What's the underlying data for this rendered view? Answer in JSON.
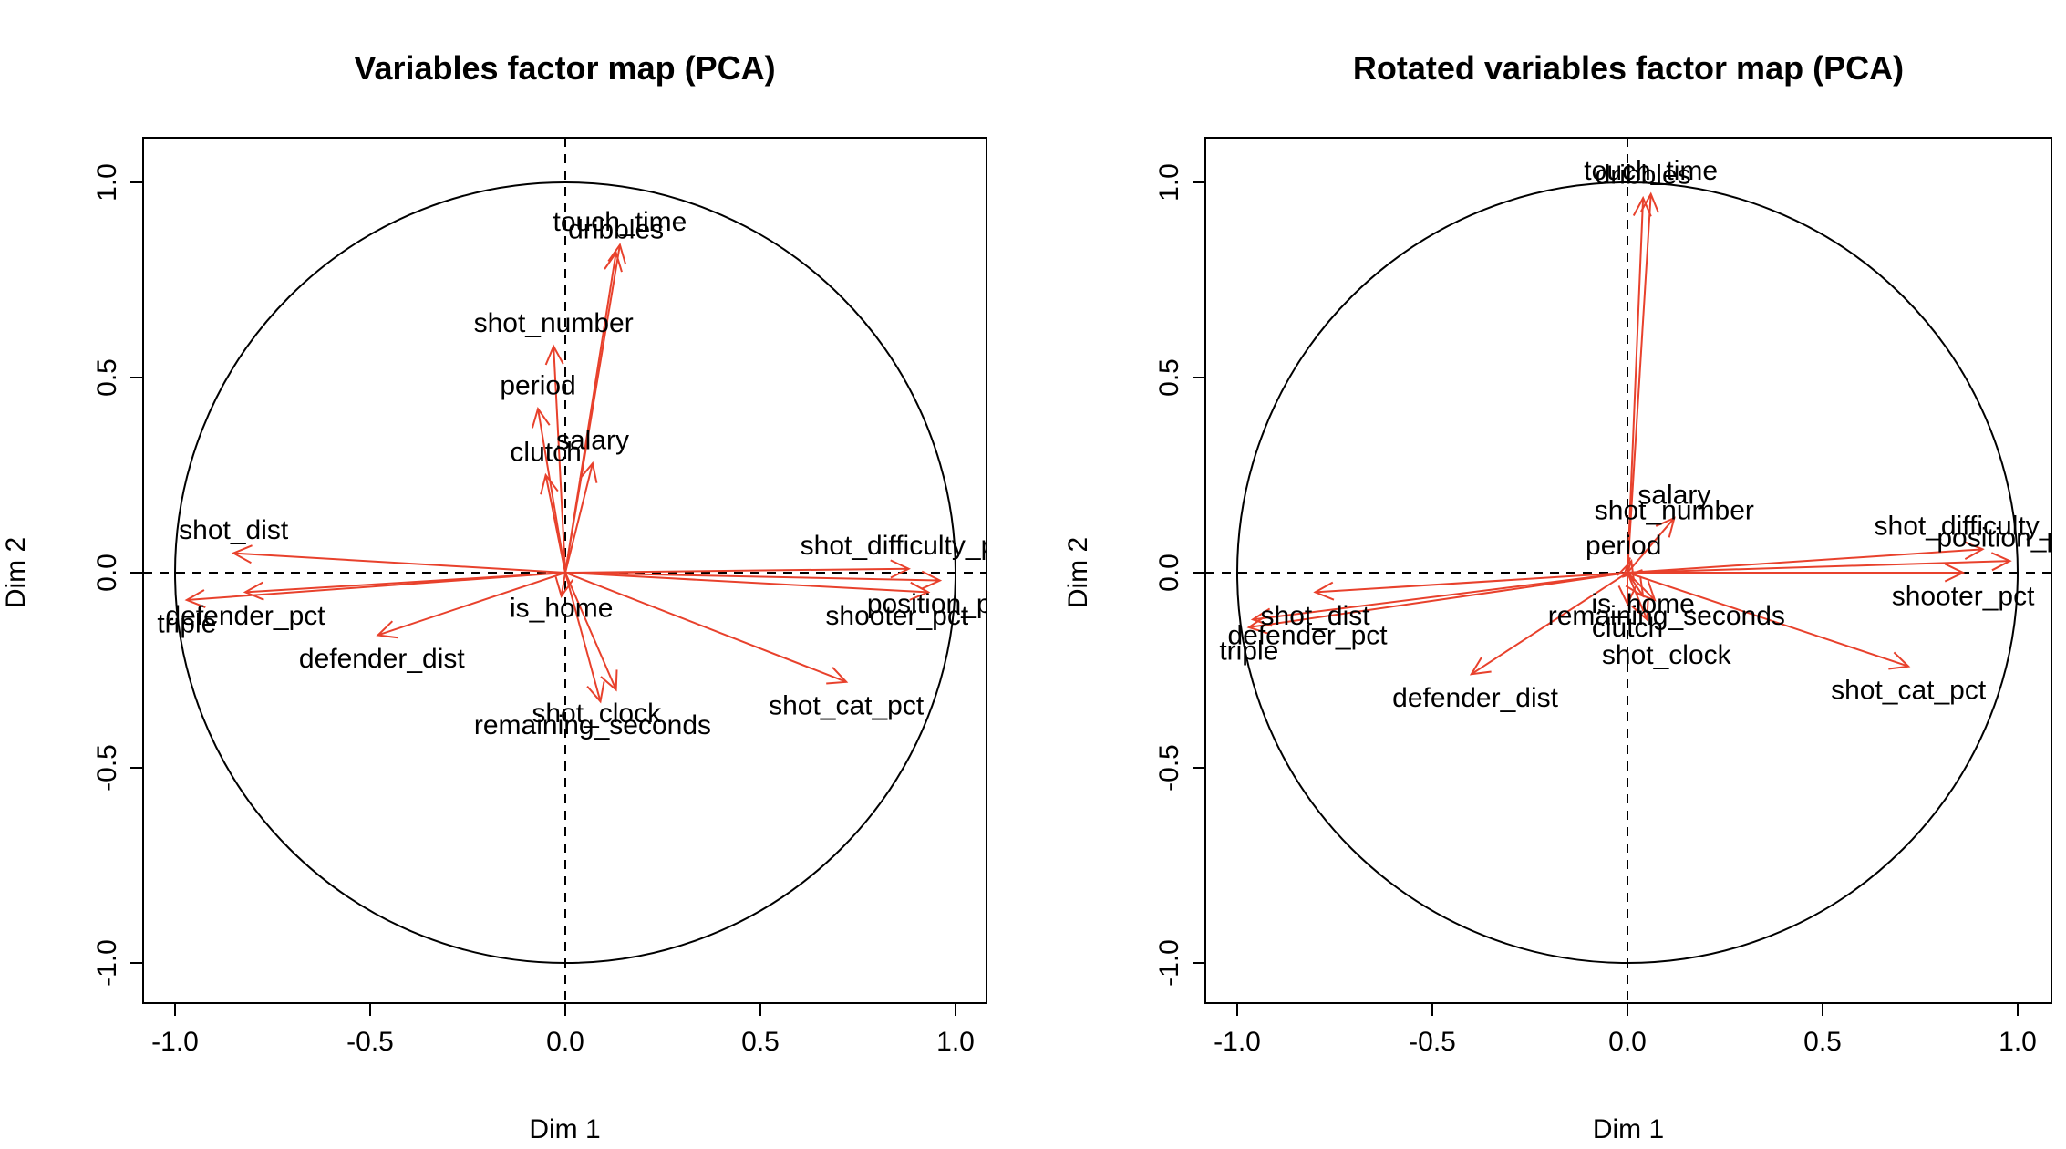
{
  "colors": {
    "arrow": "#e8412c",
    "axis": "#000000"
  },
  "chart_data": [
    {
      "type": "scatter",
      "subtype": "pca-variable-correlation-circle",
      "title": "Variables factor map (PCA)",
      "xlabel": "Dim 1",
      "ylabel": "Dim 2",
      "xlim": [
        -1.0,
        1.0
      ],
      "ylim": [
        -1.0,
        1.0
      ],
      "xticks": [
        "-1.0",
        "-0.5",
        "0.0",
        "0.5",
        "1.0"
      ],
      "yticks": [
        "-1.0",
        "-0.5",
        "0.0",
        "0.5",
        "1.0"
      ],
      "unit_circle": true,
      "variables": [
        {
          "name": "touch_time",
          "x": 0.14,
          "y": 0.84
        },
        {
          "name": "dribbles",
          "x": 0.13,
          "y": 0.82
        },
        {
          "name": "shot_number",
          "x": -0.03,
          "y": 0.58
        },
        {
          "name": "period",
          "x": -0.07,
          "y": 0.42
        },
        {
          "name": "salary",
          "x": 0.07,
          "y": 0.28
        },
        {
          "name": "clutch",
          "x": -0.05,
          "y": 0.25
        },
        {
          "name": "shot_dist",
          "x": -0.85,
          "y": 0.05
        },
        {
          "name": "shot_difficulty_pct",
          "x": 0.88,
          "y": 0.01
        },
        {
          "name": "position_pct",
          "x": 0.96,
          "y": -0.02
        },
        {
          "name": "shooter_pct",
          "x": 0.93,
          "y": -0.05
        },
        {
          "name": "defender_pct",
          "x": -0.82,
          "y": -0.05
        },
        {
          "name": "triple",
          "x": -0.97,
          "y": -0.07
        },
        {
          "name": "defender_dist",
          "x": -0.48,
          "y": -0.16
        },
        {
          "name": "is_home",
          "x": -0.01,
          "y": -0.06
        },
        {
          "name": "shot_clock",
          "x": 0.13,
          "y": -0.3
        },
        {
          "name": "remaining_seconds",
          "x": 0.09,
          "y": -0.33
        },
        {
          "name": "shot_cat_pct",
          "x": 0.72,
          "y": -0.28
        }
      ],
      "labels": [
        {
          "text": "touch_time",
          "x": 0.14,
          "y": 0.9
        },
        {
          "text": "dribbles",
          "x": 0.13,
          "y": 0.88
        },
        {
          "text": "shot_number",
          "x": -0.03,
          "y": 0.64
        },
        {
          "text": "period",
          "x": -0.07,
          "y": 0.48
        },
        {
          "text": "salary",
          "x": 0.07,
          "y": 0.34
        },
        {
          "text": "clutch",
          "x": -0.05,
          "y": 0.31
        },
        {
          "text": "shot_dist",
          "x": -0.85,
          "y": 0.11
        },
        {
          "text": "shot_difficulty_pct",
          "x": 0.88,
          "y": 0.07
        },
        {
          "text": "position_pct",
          "x": 0.96,
          "y": -0.08
        },
        {
          "text": "shooter_pct",
          "x": 0.85,
          "y": -0.11
        },
        {
          "text": "defender_pct",
          "x": -0.82,
          "y": -0.11
        },
        {
          "text": "triple",
          "x": -0.97,
          "y": -0.13
        },
        {
          "text": "defender_dist",
          "x": -0.47,
          "y": -0.22
        },
        {
          "text": "is_home",
          "x": -0.01,
          "y": -0.09
        },
        {
          "text": "shot_clock",
          "x": 0.08,
          "y": -0.36
        },
        {
          "text": "remaining_seconds",
          "x": 0.07,
          "y": -0.39
        },
        {
          "text": "shot_cat_pct",
          "x": 0.72,
          "y": -0.34
        }
      ]
    },
    {
      "type": "scatter",
      "subtype": "pca-variable-correlation-circle",
      "title": "Rotated variables factor map (PCA)",
      "xlabel": "Dim 1",
      "ylabel": "Dim 2",
      "xlim": [
        -1.0,
        1.0
      ],
      "ylim": [
        -1.0,
        1.0
      ],
      "xticks": [
        "-1.0",
        "-0.5",
        "0.0",
        "0.5",
        "1.0"
      ],
      "yticks": [
        "-1.0",
        "-0.5",
        "0.0",
        "0.5",
        "1.0"
      ],
      "unit_circle": true,
      "variables": [
        {
          "name": "touch_time",
          "x": 0.06,
          "y": 0.97
        },
        {
          "name": "dribbles",
          "x": 0.04,
          "y": 0.96
        },
        {
          "name": "salary",
          "x": 0.12,
          "y": 0.14
        },
        {
          "name": "shot_number",
          "x": 0.01,
          "y": 0.03
        },
        {
          "name": "period",
          "x": -0.01,
          "y": -0.01
        },
        {
          "name": "shot_difficulty_pct",
          "x": 0.91,
          "y": 0.06
        },
        {
          "name": "position_pct",
          "x": 0.98,
          "y": 0.03
        },
        {
          "name": "shooter_pct",
          "x": 0.86,
          "y": 0.0
        },
        {
          "name": "shot_dist",
          "x": -0.8,
          "y": -0.05
        },
        {
          "name": "defender_pct",
          "x": -0.96,
          "y": -0.12
        },
        {
          "name": "triple",
          "x": -0.97,
          "y": -0.14
        },
        {
          "name": "defender_dist",
          "x": -0.4,
          "y": -0.26
        },
        {
          "name": "is_home",
          "x": 0.04,
          "y": -0.06
        },
        {
          "name": "remaining_seconds",
          "x": 0.07,
          "y": -0.07
        },
        {
          "name": "clutch",
          "x": 0.0,
          "y": -0.08
        },
        {
          "name": "shot_clock",
          "x": 0.05,
          "y": -0.12
        },
        {
          "name": "shot_cat_pct",
          "x": 0.72,
          "y": -0.24
        }
      ],
      "labels": [
        {
          "text": "touch_time",
          "x": 0.06,
          "y": 1.03
        },
        {
          "text": "dribbles",
          "x": 0.04,
          "y": 1.02
        },
        {
          "text": "salary",
          "x": 0.12,
          "y": 0.2
        },
        {
          "text": "shot_number",
          "x": 0.12,
          "y": 0.16
        },
        {
          "text": "period",
          "x": -0.01,
          "y": 0.07
        },
        {
          "text": "shot_difficulty_pct",
          "x": 0.91,
          "y": 0.12
        },
        {
          "text": "position_pct",
          "x": 0.98,
          "y": 0.09
        },
        {
          "text": "shooter_pct",
          "x": 0.86,
          "y": -0.06
        },
        {
          "text": "shot_dist",
          "x": -0.8,
          "y": -0.11
        },
        {
          "text": "defender_pct",
          "x": -0.82,
          "y": -0.16
        },
        {
          "text": "triple",
          "x": -0.97,
          "y": -0.2
        },
        {
          "text": "defender_dist",
          "x": -0.39,
          "y": -0.32
        },
        {
          "text": "is_home",
          "x": 0.04,
          "y": -0.08
        },
        {
          "text": "remaining_seconds",
          "x": 0.1,
          "y": -0.11
        },
        {
          "text": "clutch",
          "x": 0.0,
          "y": -0.14
        },
        {
          "text": "shot_clock",
          "x": 0.1,
          "y": -0.21
        },
        {
          "text": "shot_cat_pct",
          "x": 0.72,
          "y": -0.3
        }
      ]
    }
  ]
}
